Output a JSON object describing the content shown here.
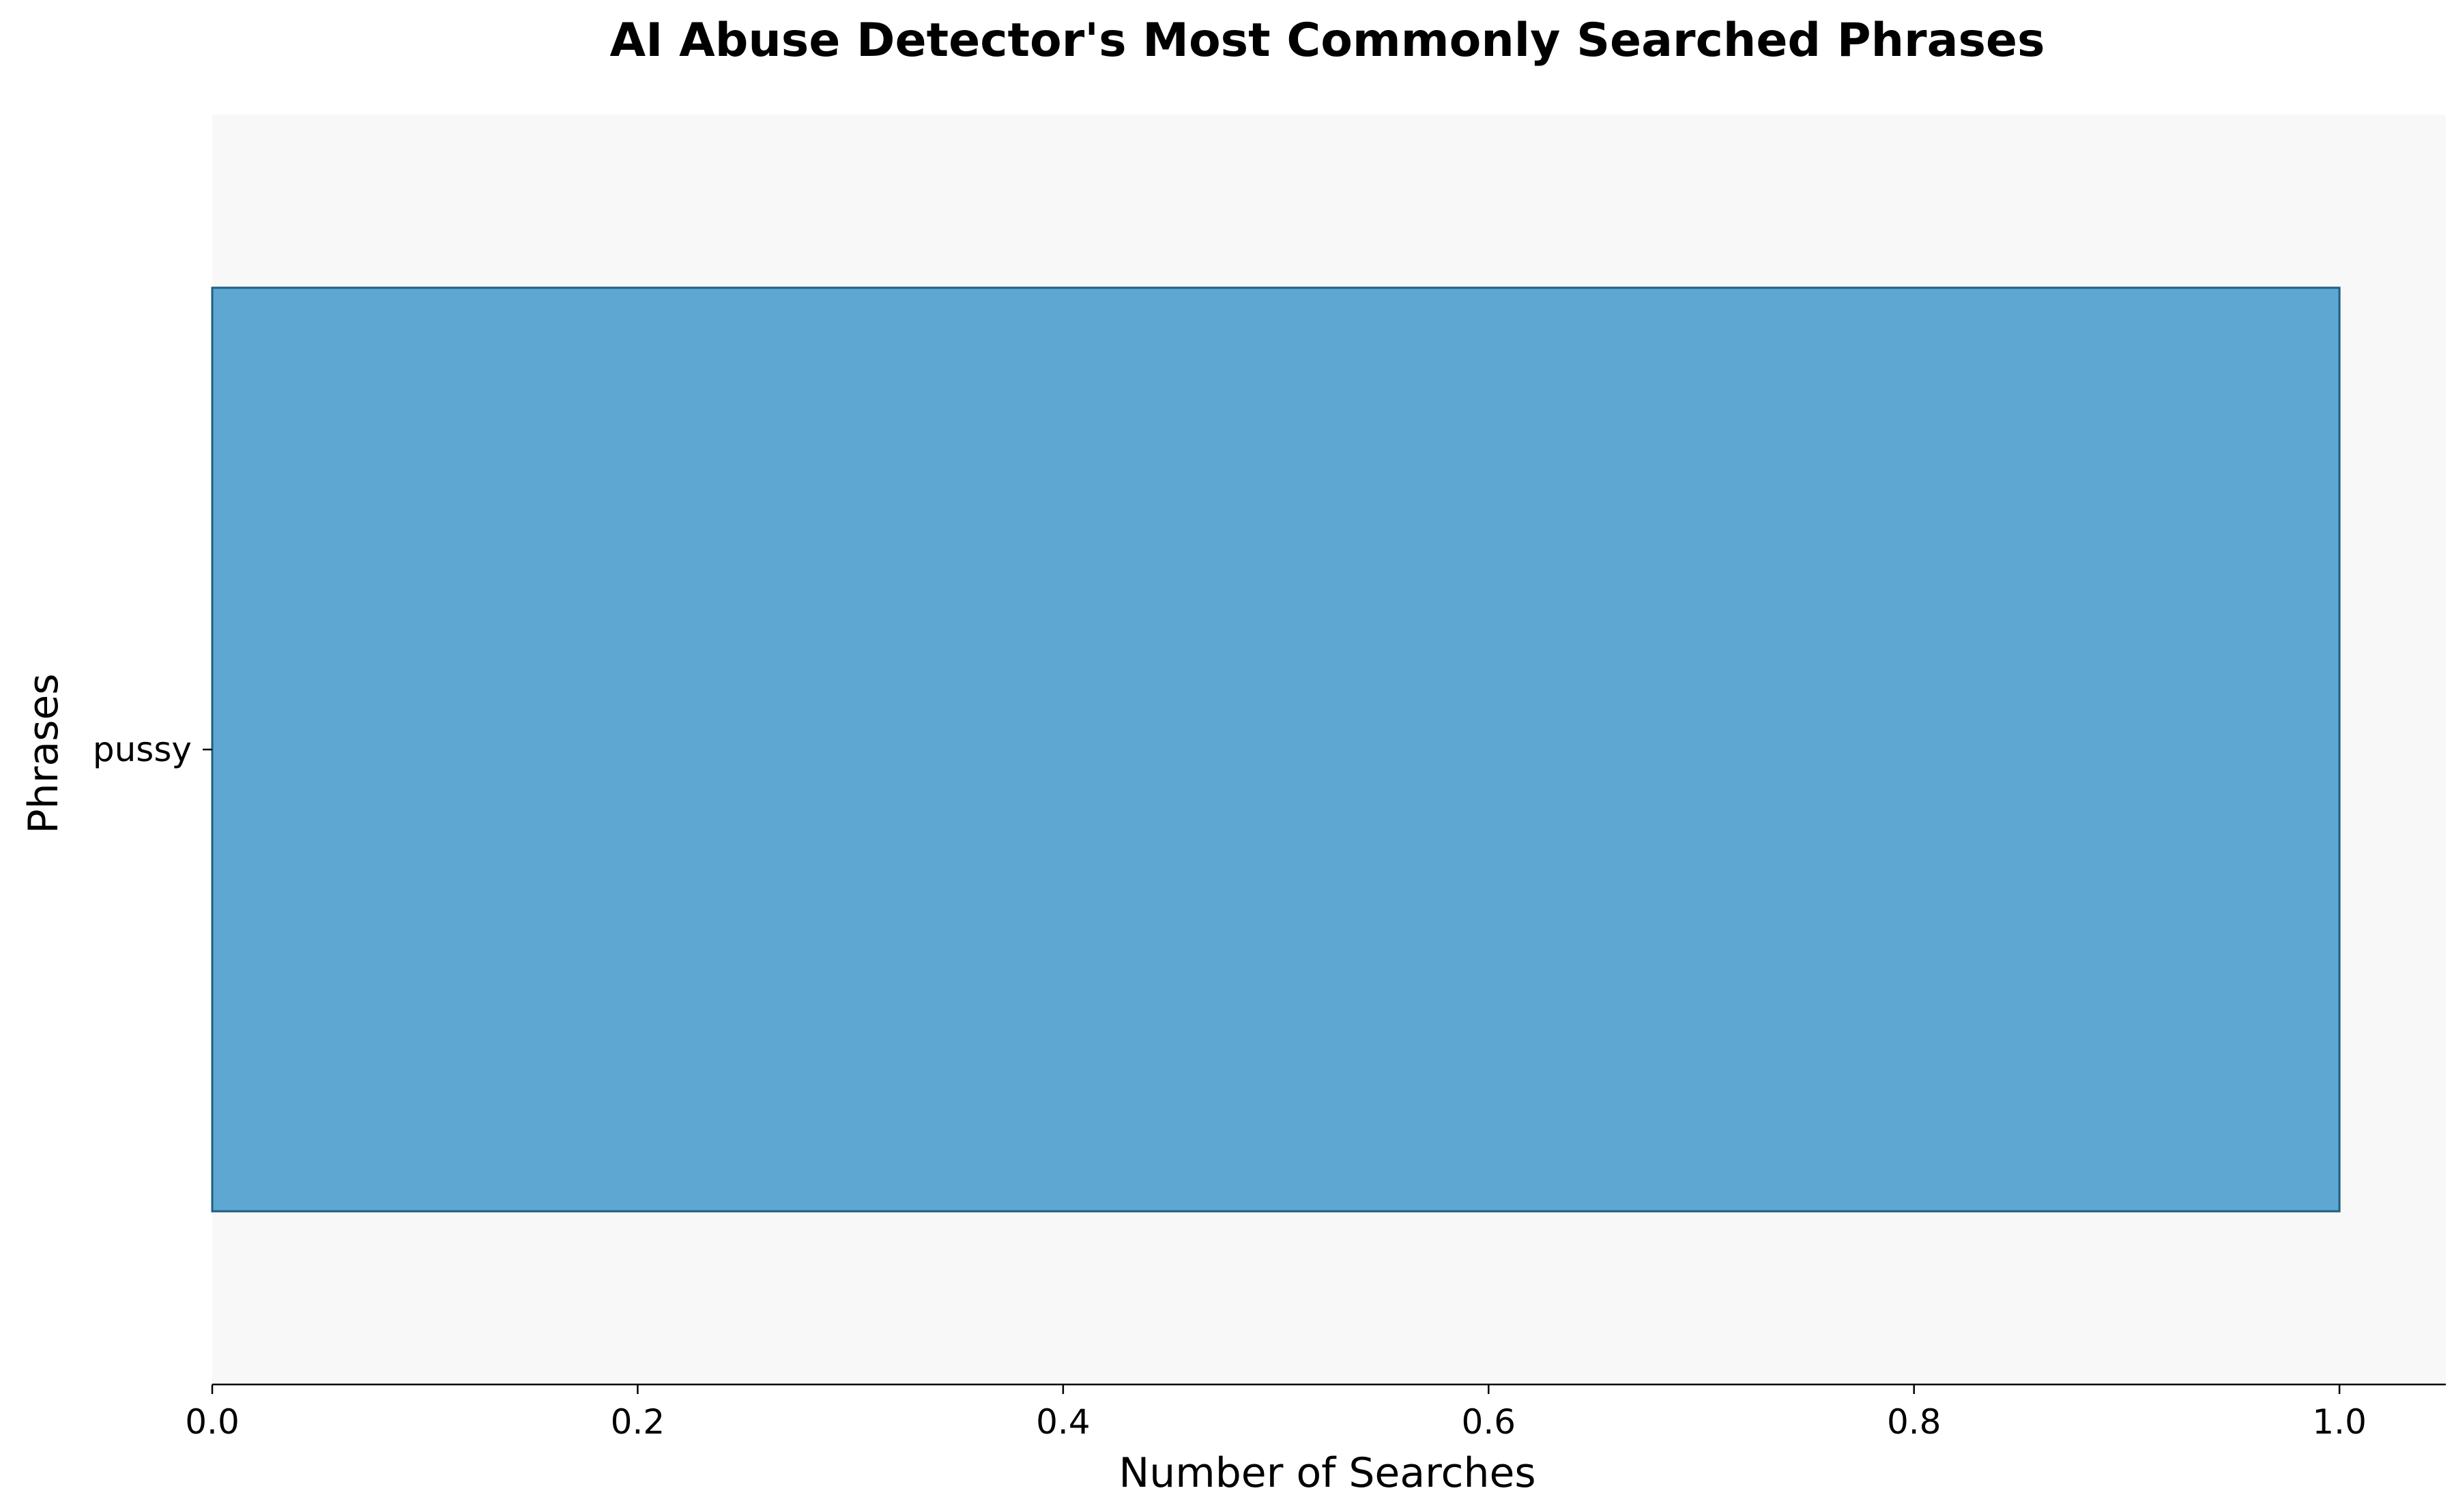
{
  "chart_data": {
    "type": "bar",
    "orientation": "horizontal",
    "title": "AI Abuse Detector's Most Commonly Searched Phrases",
    "xlabel": "Number of Searches",
    "ylabel": "Phrases",
    "categories": [
      "pussy"
    ],
    "values": [
      1
    ],
    "xlim": [
      0,
      1.05
    ],
    "xticks": [
      0.0,
      0.2,
      0.4,
      0.6,
      0.8,
      1.0
    ],
    "xtick_labels": [
      "0.0",
      "0.2",
      "0.4",
      "0.6",
      "0.8",
      "1.0"
    ],
    "grid": false,
    "legend": "none"
  },
  "colors": {
    "bar_fill": "#5fa7d3",
    "bar_edge": "#1f5f80",
    "plot_background": "#f8f8f8",
    "axis": "#000000"
  }
}
